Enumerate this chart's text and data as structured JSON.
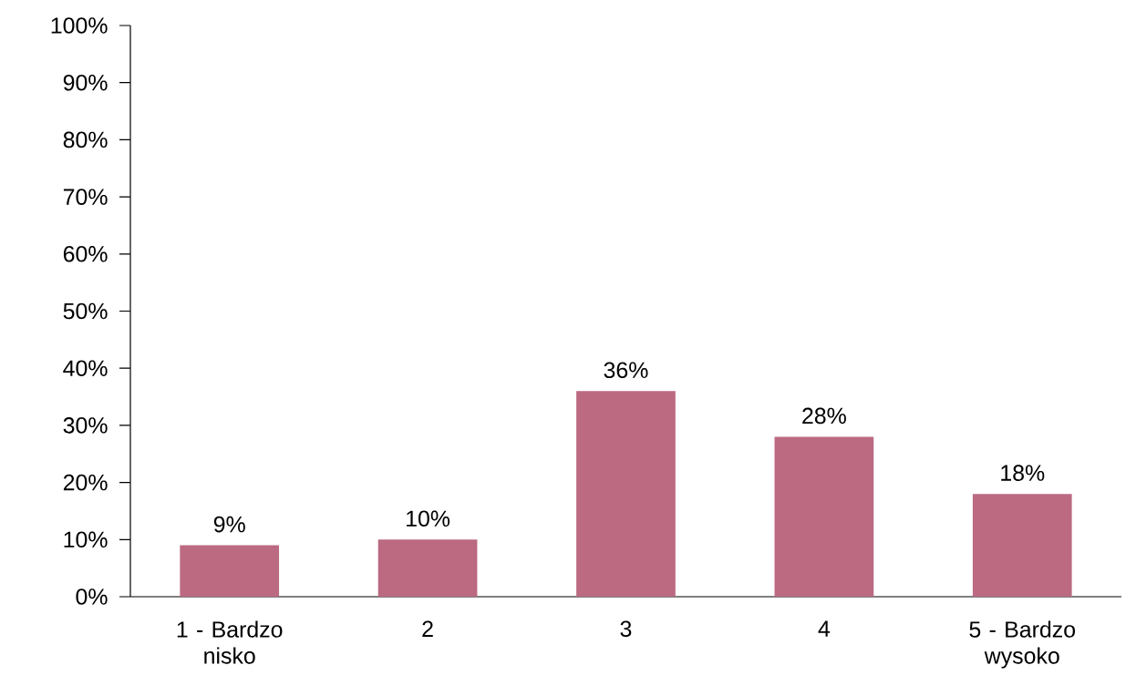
{
  "chart_data": {
    "type": "bar",
    "categories": [
      "1 - Bardzo nisko",
      "2",
      "3",
      "4",
      "5 - Bardzo wysoko"
    ],
    "values": [
      9,
      10,
      36,
      28,
      18
    ],
    "value_labels": [
      "9%",
      "10%",
      "36%",
      "28%",
      "18%"
    ],
    "color": "#bb6a82",
    "ylim": [
      0,
      100
    ],
    "yticks": [
      {
        "value": 0,
        "label": "0%"
      },
      {
        "value": 10,
        "label": "10%"
      },
      {
        "value": 20,
        "label": "20%"
      },
      {
        "value": 30,
        "label": "30%"
      },
      {
        "value": 40,
        "label": "40%"
      },
      {
        "value": 50,
        "label": "50%"
      },
      {
        "value": 60,
        "label": "60%"
      },
      {
        "value": 70,
        "label": "70%"
      },
      {
        "value": 80,
        "label": "80%"
      },
      {
        "value": 90,
        "label": "90%"
      },
      {
        "value": 100,
        "label": "100%"
      }
    ],
    "grid": false
  }
}
